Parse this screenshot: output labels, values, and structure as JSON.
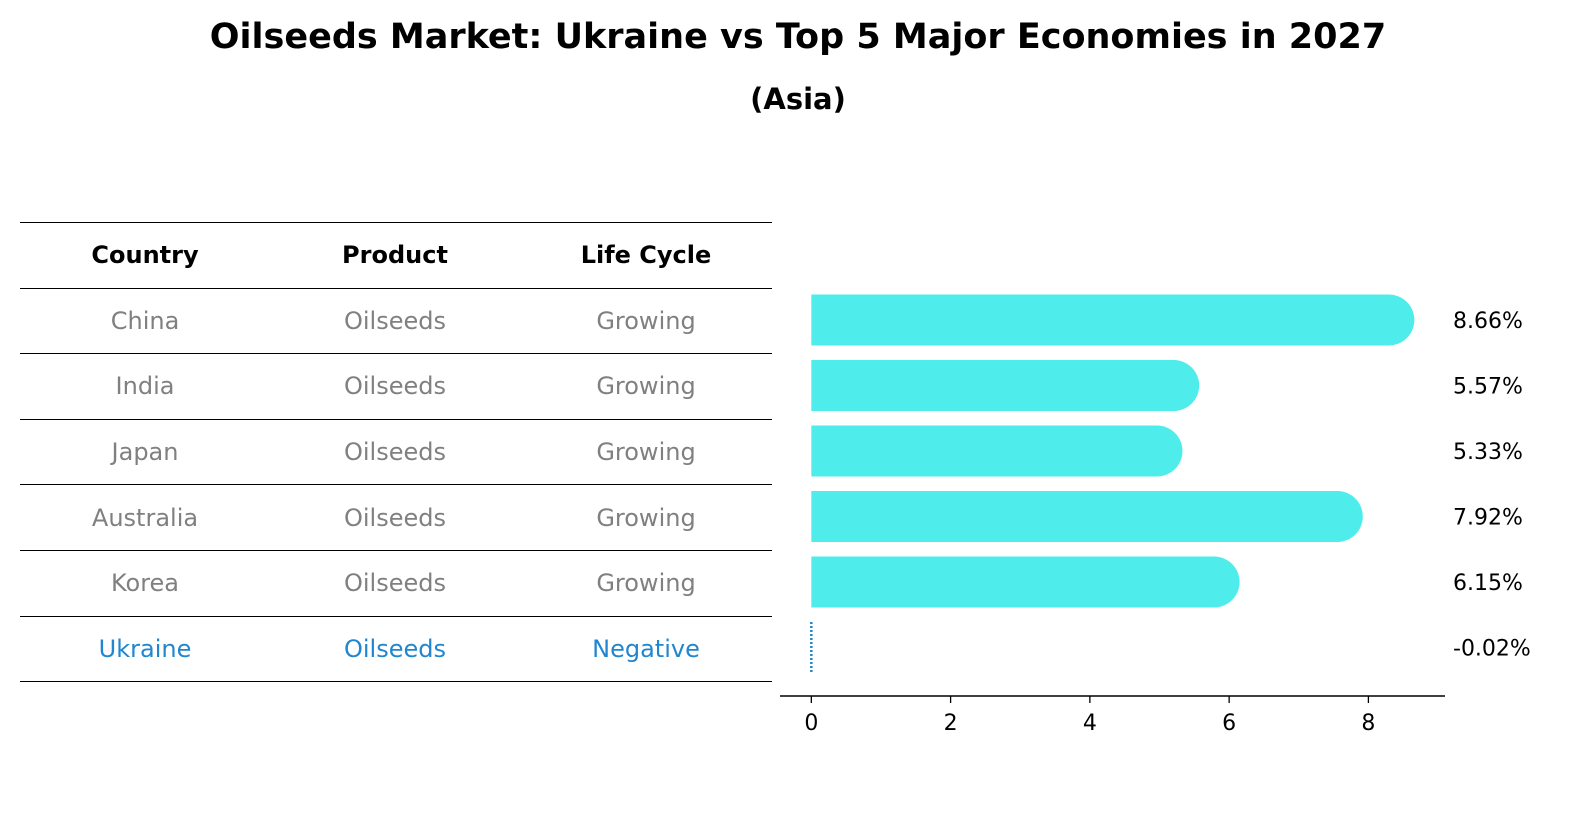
{
  "title": "Oilseeds Market: Ukraine vs Top 5 Major Economies in 2027",
  "subtitle": "(Asia)",
  "table": {
    "headers": [
      "Country",
      "Product",
      "Life Cycle"
    ],
    "rows": [
      [
        "China",
        "Oilseeds",
        "Growing"
      ],
      [
        "India",
        "Oilseeds",
        "Growing"
      ],
      [
        "Japan",
        "Oilseeds",
        "Growing"
      ],
      [
        "Australia",
        "Oilseeds",
        "Growing"
      ],
      [
        "Korea",
        "Oilseeds",
        "Growing"
      ],
      [
        "Ukraine",
        "Oilseeds",
        "Negative"
      ]
    ]
  },
  "colors": {
    "bar": "#4eeceb",
    "highlight": "#1f86cf",
    "muted": "#808080"
  },
  "chart_data": {
    "type": "bar",
    "orientation": "horizontal",
    "categories": [
      "China",
      "India",
      "Japan",
      "Australia",
      "Korea",
      "Ukraine"
    ],
    "values": [
      8.66,
      5.57,
      5.33,
      7.92,
      6.15,
      -0.02
    ],
    "value_labels": [
      "8.66%",
      "5.57%",
      "5.33%",
      "7.92%",
      "6.15%",
      "-0.02%"
    ],
    "xlim": [
      -0.45,
      9.1
    ],
    "xticks": [
      "0",
      "2",
      "4",
      "6",
      "8"
    ],
    "xlabel": "",
    "ylabel": "",
    "grid": false
  }
}
